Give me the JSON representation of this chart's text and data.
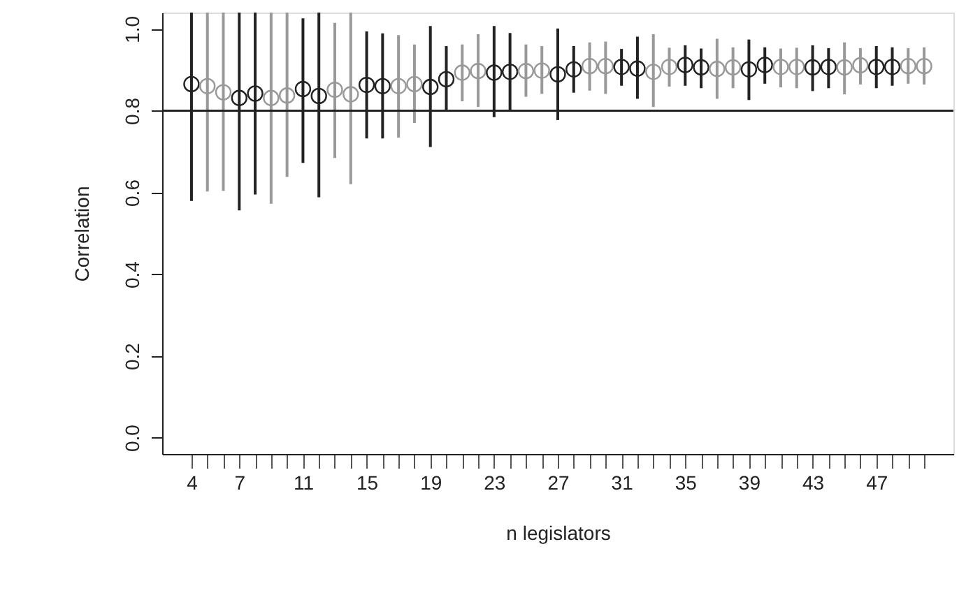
{
  "chart_data": {
    "type": "scatter",
    "xlabel": "n legislators",
    "ylabel": "Correlation",
    "x": [
      4,
      5,
      6,
      7,
      8,
      9,
      10,
      11,
      12,
      13,
      14,
      15,
      16,
      17,
      18,
      19,
      20,
      21,
      22,
      23,
      24,
      25,
      26,
      27,
      28,
      29,
      30,
      31,
      32,
      33,
      34,
      35,
      36,
      37,
      38,
      39,
      40,
      41,
      42,
      43,
      44,
      45,
      46,
      47,
      48,
      49,
      50
    ],
    "values": [
      0.865,
      0.86,
      0.845,
      0.831,
      0.842,
      0.831,
      0.837,
      0.853,
      0.836,
      0.851,
      0.84,
      0.863,
      0.86,
      0.86,
      0.865,
      0.858,
      0.877,
      0.893,
      0.897,
      0.893,
      0.895,
      0.897,
      0.898,
      0.889,
      0.901,
      0.909,
      0.909,
      0.907,
      0.903,
      0.895,
      0.907,
      0.912,
      0.906,
      0.902,
      0.906,
      0.901,
      0.912,
      0.907,
      0.907,
      0.906,
      0.907,
      0.906,
      0.911,
      0.907,
      0.907,
      0.909,
      0.909
    ],
    "errors": [
      [
        0.579,
        1.04
      ],
      [
        0.602,
        1.04
      ],
      [
        0.604,
        1.04
      ],
      [
        0.556,
        1.04
      ],
      [
        0.595,
        1.04
      ],
      [
        0.572,
        1.04
      ],
      [
        0.638,
        1.04
      ],
      [
        0.672,
        1.026
      ],
      [
        0.588,
        1.04
      ],
      [
        0.684,
        1.015
      ],
      [
        0.62,
        1.04
      ],
      [
        0.732,
        0.994
      ],
      [
        0.732,
        0.989
      ],
      [
        0.734,
        0.985
      ],
      [
        0.77,
        0.962
      ],
      [
        0.711,
        1.007
      ],
      [
        0.798,
        0.958
      ],
      [
        0.823,
        0.962
      ],
      [
        0.809,
        0.987
      ],
      [
        0.784,
        1.007
      ],
      [
        0.798,
        0.99
      ],
      [
        0.834,
        0.962
      ],
      [
        0.841,
        0.958
      ],
      [
        0.777,
        1.001
      ],
      [
        0.844,
        0.958
      ],
      [
        0.849,
        0.967
      ],
      [
        0.841,
        0.969
      ],
      [
        0.861,
        0.951
      ],
      [
        0.829,
        0.981
      ],
      [
        0.809,
        0.987
      ],
      [
        0.859,
        0.954
      ],
      [
        0.861,
        0.96
      ],
      [
        0.855,
        0.952
      ],
      [
        0.829,
        0.976
      ],
      [
        0.855,
        0.955
      ],
      [
        0.826,
        0.974
      ],
      [
        0.866,
        0.955
      ],
      [
        0.857,
        0.952
      ],
      [
        0.855,
        0.954
      ],
      [
        0.848,
        0.96
      ],
      [
        0.855,
        0.953
      ],
      [
        0.84,
        0.967
      ],
      [
        0.864,
        0.953
      ],
      [
        0.855,
        0.958
      ],
      [
        0.861,
        0.955
      ],
      [
        0.866,
        0.953
      ],
      [
        0.864,
        0.955
      ]
    ],
    "colors": [
      "#222222",
      "#999999",
      "#999999",
      "#222222",
      "#222222",
      "#999999",
      "#999999",
      "#222222",
      "#222222",
      "#999999",
      "#999999",
      "#222222",
      "#222222",
      "#999999",
      "#999999",
      "#222222",
      "#222222",
      "#999999",
      "#999999",
      "#222222",
      "#222222",
      "#999999",
      "#999999",
      "#222222",
      "#222222",
      "#999999",
      "#999999",
      "#222222",
      "#222222",
      "#999999",
      "#999999",
      "#222222",
      "#222222",
      "#999999",
      "#999999",
      "#222222",
      "#222222",
      "#999999",
      "#999999",
      "#222222",
      "#222222",
      "#999999",
      "#999999",
      "#222222",
      "#222222",
      "#999999",
      "#999999"
    ],
    "marker": "circle",
    "grid": false,
    "xlim": [
      2.16,
      51.84
    ],
    "ylim": [
      -0.04,
      1.04
    ],
    "xticks": [
      4,
      {
        "value": 5,
        "label": null
      },
      {
        "value": 6,
        "label": null
      },
      7,
      {
        "value": 8,
        "label": null
      },
      {
        "value": 9,
        "label": null
      },
      {
        "value": 10,
        "label": null
      },
      11,
      {
        "value": 12,
        "label": null
      },
      {
        "value": 13,
        "label": null
      },
      {
        "value": 14,
        "label": null
      },
      15,
      {
        "value": 16,
        "label": null
      },
      {
        "value": 17,
        "label": null
      },
      {
        "value": 18,
        "label": null
      },
      19,
      {
        "value": 20,
        "label": null
      },
      {
        "value": 21,
        "label": null
      },
      {
        "value": 22,
        "label": null
      },
      23,
      {
        "value": 24,
        "label": null
      },
      {
        "value": 25,
        "label": null
      },
      {
        "value": 26,
        "label": null
      },
      27,
      {
        "value": 28,
        "label": null
      },
      {
        "value": 29,
        "label": null
      },
      {
        "value": 30,
        "label": null
      },
      31,
      {
        "value": 32,
        "label": null
      },
      {
        "value": 33,
        "label": null
      },
      {
        "value": 34,
        "label": null
      },
      35,
      {
        "value": 36,
        "label": null
      },
      {
        "value": 37,
        "label": null
      },
      {
        "value": 38,
        "label": null
      },
      39,
      {
        "value": 40,
        "label": null
      },
      {
        "value": 41,
        "label": null
      },
      {
        "value": 42,
        "label": null
      },
      43,
      {
        "value": 44,
        "label": null
      },
      {
        "value": 45,
        "label": null
      },
      {
        "value": 46,
        "label": null
      },
      47,
      {
        "value": 48,
        "label": null
      },
      {
        "value": 49,
        "label": null
      },
      {
        "value": 50,
        "label": null
      }
    ],
    "yticks": [
      {
        "value": 0,
        "label": "0.0"
      },
      {
        "value": 0.2,
        "label": "0.2"
      },
      {
        "value": 0.4,
        "label": "0.4"
      },
      {
        "value": 0.6,
        "label": "0.6"
      },
      {
        "value": 0.8,
        "label": "0.8"
      },
      {
        "value": 1,
        "label": "1.0"
      }
    ],
    "ref_lines": [
      {
        "axis": "y",
        "value": 0.8,
        "color": "#222222"
      }
    ]
  }
}
